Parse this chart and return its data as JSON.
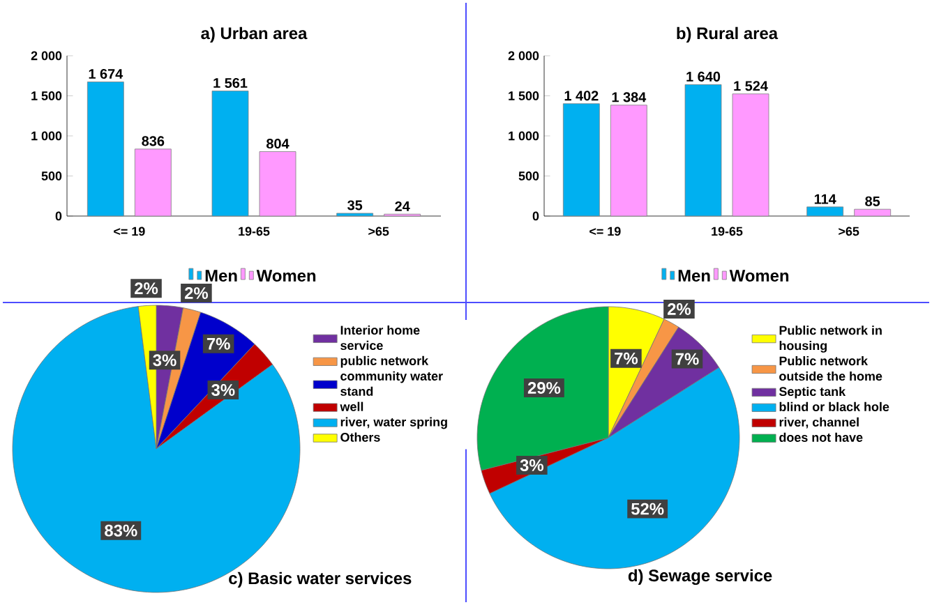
{
  "chart_data": [
    {
      "type": "bar",
      "title": "a) Urban area",
      "categories": [
        "<= 19",
        "19-65",
        ">65"
      ],
      "series": [
        {
          "name": "Men",
          "color": "#00b0f0",
          "values": [
            1674,
            1561,
            35
          ],
          "value_labels": [
            "1 674",
            "1 561",
            "35"
          ]
        },
        {
          "name": "Women",
          "color": "#ff99ff",
          "values": [
            836,
            804,
            24
          ],
          "value_labels": [
            "836",
            "804",
            "24"
          ]
        }
      ],
      "ylim": [
        0,
        2000
      ],
      "yticks": [
        0,
        {
          "value": 500,
          "label": "500"
        },
        {
          "value": 1000,
          "label": "1 000"
        },
        {
          "value": 1500,
          "label": "1 500"
        },
        {
          "value": 2000,
          "label": "2 000"
        }
      ],
      "legend": "bottom"
    },
    {
      "type": "bar",
      "title": "b) Rural area",
      "categories": [
        "<= 19",
        "19-65",
        ">65"
      ],
      "series": [
        {
          "name": "Men",
          "color": "#00b0f0",
          "values": [
            1402,
            1640,
            114
          ],
          "value_labels": [
            "1 402",
            "1 640",
            "114"
          ]
        },
        {
          "name": "Women",
          "color": "#ff99ff",
          "values": [
            1384,
            1524,
            85
          ],
          "value_labels": [
            "1 384",
            "1 524",
            "85"
          ]
        }
      ],
      "ylim": [
        0,
        2000
      ],
      "yticks": [
        0,
        {
          "value": 500,
          "label": "500"
        },
        {
          "value": 1000,
          "label": "1 000"
        },
        {
          "value": 1500,
          "label": "1 500"
        },
        {
          "value": 2000,
          "label": "2 000"
        }
      ],
      "legend": "bottom"
    },
    {
      "type": "pie",
      "title": "c) Basic water services",
      "categories": [
        "Interior home service",
        "public network",
        "community water stand",
        "well",
        "river, water spring",
        "Others"
      ],
      "values": [
        3,
        2,
        7,
        3,
        83,
        2
      ],
      "value_labels": [
        "3%",
        "2%",
        "7%",
        "3%",
        "83%",
        "2%"
      ],
      "colors": [
        "#7030a0",
        "#f79646",
        "#0000cc",
        "#c00000",
        "#00b0f0",
        "#ffff00"
      ],
      "legend": "right"
    },
    {
      "type": "pie",
      "title": "d) Sewage service",
      "categories": [
        "Public network in housing",
        "Public network outside the home",
        "Septic tank",
        "blind or black hole",
        "river, channel",
        "does not have"
      ],
      "values": [
        7,
        2,
        7,
        52,
        3,
        29
      ],
      "value_labels": [
        "7%",
        "2%",
        "7%",
        "52%",
        "3%",
        "29%"
      ],
      "colors": [
        "#ffff00",
        "#f79646",
        "#7030a0",
        "#00b0f0",
        "#c00000",
        "#00b050"
      ],
      "legend": "right"
    }
  ]
}
